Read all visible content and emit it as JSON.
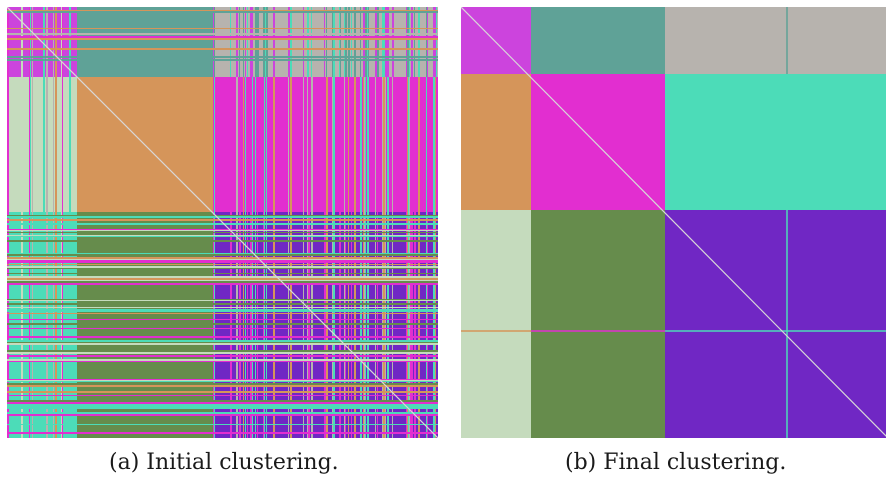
{
  "captions": {
    "a": "(a) Initial clustering.",
    "b": "(b) Final clustering."
  },
  "colors": {
    "magenta": "#cc44dd",
    "pink": "#e22ed0",
    "teal": "#5fa297",
    "gray": "#b7b3ae",
    "light_green": "#c5dbbd",
    "orange": "#d5955a",
    "turquoise": "#4cdcb8",
    "olive": "#668c4c",
    "purple": "#7027c4",
    "diagonal": "#d8d8d8"
  }
}
